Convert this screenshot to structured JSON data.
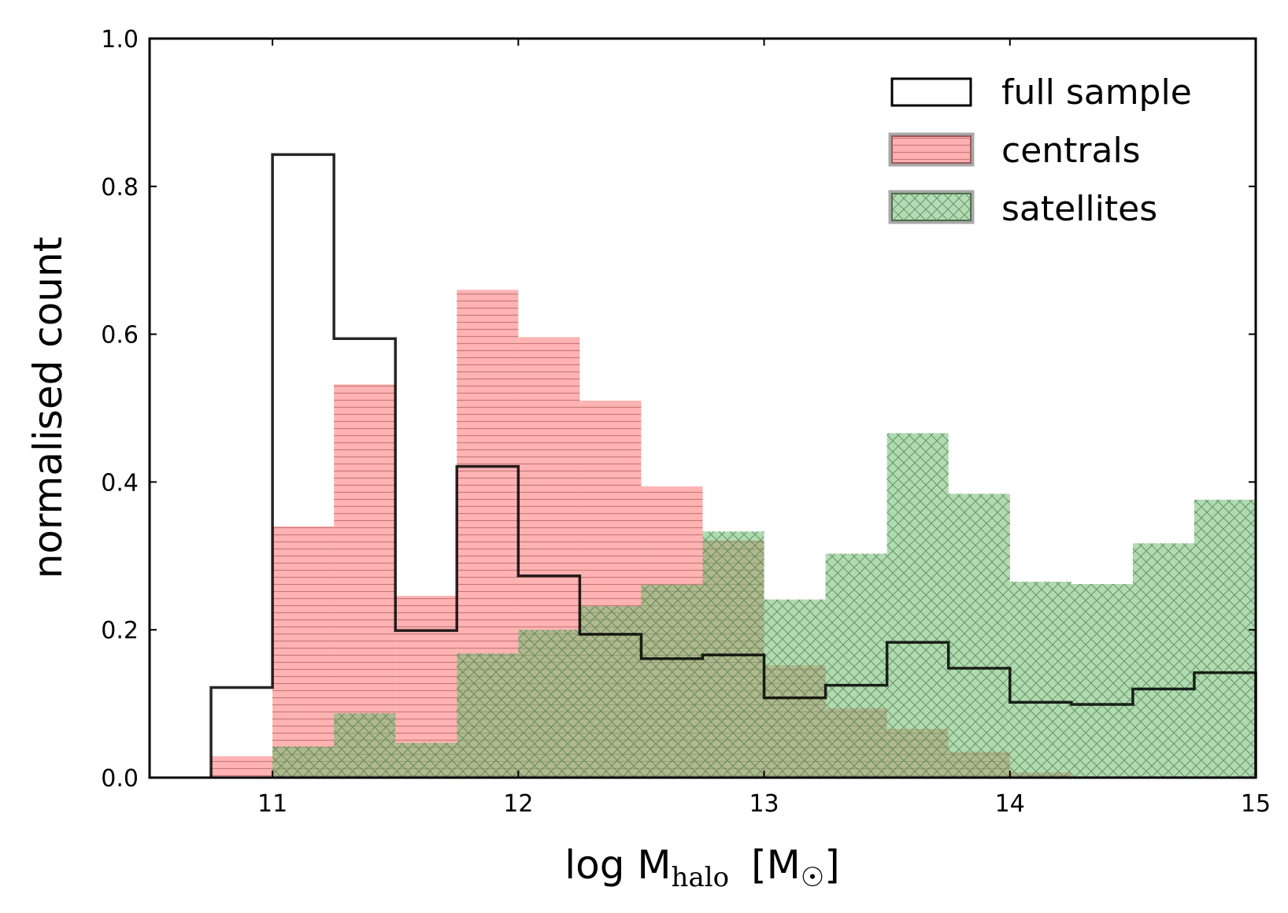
{
  "chart_data": {
    "type": "histogram",
    "xlabel": {
      "prefix": "log M",
      "subscript": "halo",
      "suffix_open": "[M",
      "sun_symbol": "☉",
      "suffix_close": "]"
    },
    "ylabel": "normalised count",
    "xlim": [
      10.5,
      15
    ],
    "ylim": [
      0,
      1.0
    ],
    "xticks": [
      11,
      12,
      13,
      14,
      15
    ],
    "yticks": [
      0.0,
      0.2,
      0.4,
      0.6,
      0.8,
      1.0
    ],
    "xtick_labels": [
      "11",
      "12",
      "13",
      "14",
      "15"
    ],
    "ytick_labels": [
      "0.0",
      "0.2",
      "0.4",
      "0.6",
      "0.8",
      "1.0"
    ],
    "bin_edges": [
      10.75,
      11.0,
      11.25,
      11.5,
      11.75,
      12.0,
      12.25,
      12.5,
      12.75,
      13.0,
      13.25,
      13.5,
      13.75,
      14.0,
      14.25,
      14.5,
      14.75,
      15.0
    ],
    "series": [
      {
        "name": "full sample",
        "style": "step",
        "color": "#000000",
        "values": [
          0.122,
          0.843,
          0.594,
          0.199,
          0.421,
          0.273,
          0.194,
          0.161,
          0.166,
          0.108,
          0.125,
          0.183,
          0.148,
          0.102,
          0.099,
          0.12,
          0.142
        ]
      },
      {
        "name": "centrals",
        "style": "filled-hatched-horizontal",
        "color": "#ff9090",
        "hatch_color": "#b06060",
        "values": [
          0.029,
          0.34,
          0.532,
          0.246,
          0.66,
          0.596,
          0.51,
          0.394,
          0.321,
          0.152,
          0.094,
          0.066,
          0.035,
          0.007,
          0.0,
          0.0,
          0.0
        ]
      },
      {
        "name": "satellites",
        "style": "filled-hatched-cross",
        "color": "#7fc27f",
        "hatch_color": "#4a7a4a",
        "values": [
          0.0,
          0.042,
          0.087,
          0.047,
          0.168,
          0.2,
          0.232,
          0.261,
          0.333,
          0.241,
          0.303,
          0.466,
          0.384,
          0.265,
          0.262,
          0.317,
          0.376
        ]
      }
    ],
    "legend": {
      "placement": "top-right",
      "entries": [
        "full sample",
        "centrals",
        "satellites"
      ]
    }
  }
}
